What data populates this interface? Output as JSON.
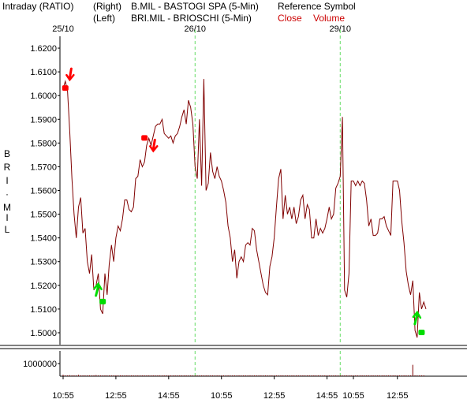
{
  "header": {
    "title": "Intraday (RATIO)",
    "right_tag": "(Right)",
    "left_tag": "(Left)",
    "symbol_right": "B.MIL - BASTOGI SPA  (5-Min)",
    "symbol_left": "BRI.MIL - BRIOSCHI  (5-Min)",
    "reference": "Reference Symbol",
    "close_label": "Close",
    "volume_label": "Volume"
  },
  "vertical_label": [
    "B",
    "R",
    "I",
    "·",
    "M",
    "I",
    "L"
  ],
  "colors": {
    "price_line": "#800000",
    "annotation_down": "#ff0000",
    "annotation_up": "#00dd00",
    "session_divider": "#66dd66",
    "legend_text": "#cc0000"
  },
  "chart_data": {
    "type": "line",
    "title": "",
    "xlabel": "",
    "ylabel": "BRI.MIL",
    "date_labels": [
      "25/10",
      "26/10",
      "29/10"
    ],
    "x_tick_labels": [
      "10:55",
      "12:55",
      "14:55",
      "10:55",
      "12:55",
      "14:55",
      "10:55",
      "12:55"
    ],
    "ylim": [
      1.495,
      1.625
    ],
    "y_ticks": [
      1.62,
      1.61,
      1.6,
      1.59,
      1.58,
      1.57,
      1.56,
      1.55,
      1.54,
      1.53,
      1.52,
      1.51,
      1.5
    ],
    "y_tick_labels": [
      "1.6200",
      "1.6100",
      "1.6000",
      "1.5900",
      "1.5800",
      "1.5700",
      "1.5600",
      "1.5500",
      "1.5400",
      "1.5300",
      "1.5200",
      "1.5100",
      "1.5000"
    ],
    "series": [
      {
        "values": [
          1.603,
          1.606,
          1.602,
          1.585,
          1.565,
          1.55,
          1.54,
          1.553,
          1.557,
          1.542,
          1.544,
          1.53,
          1.525,
          1.533,
          1.518,
          1.52,
          1.525,
          1.51,
          1.508,
          1.525,
          1.516,
          1.529,
          1.537,
          1.53,
          1.54,
          1.545,
          1.543,
          1.548,
          1.556,
          1.556,
          1.552,
          1.551,
          1.553,
          1.565,
          1.566,
          1.573,
          1.57,
          1.572,
          1.579,
          1.582,
          1.579,
          1.583,
          1.587,
          1.588,
          1.588,
          1.59,
          1.584,
          1.583,
          1.582,
          1.583,
          1.58,
          1.583,
          1.584,
          1.587,
          1.591,
          1.594,
          1.588,
          1.598,
          1.595,
          1.588,
          1.57,
          1.565,
          1.59,
          1.562,
          1.607,
          1.56,
          1.563,
          1.576,
          1.568,
          1.565,
          1.57,
          1.566,
          1.564,
          1.56,
          1.555,
          1.545,
          1.54,
          1.53,
          1.535,
          1.523,
          1.53,
          1.532,
          1.53,
          1.537,
          1.538,
          1.537,
          1.544,
          1.543,
          1.535,
          1.53,
          1.525,
          1.52,
          1.517,
          1.516,
          1.528,
          1.532,
          1.54,
          1.553,
          1.565,
          1.569,
          1.548,
          1.558,
          1.55,
          1.553,
          1.548,
          1.553,
          1.546,
          1.549,
          1.556,
          1.558,
          1.548,
          1.554,
          1.552,
          1.54,
          1.54,
          1.548,
          1.541,
          1.544,
          1.542,
          1.544,
          1.548,
          1.553,
          1.548,
          1.55,
          1.561,
          1.563,
          1.566,
          1.591,
          1.518,
          1.515,
          1.525,
          1.564,
          1.564,
          1.562,
          1.564,
          1.562,
          1.564,
          1.563,
          1.556,
          1.545,
          1.548,
          1.541,
          1.541,
          1.542,
          1.548,
          1.548,
          1.549,
          1.545,
          1.543,
          1.541,
          1.564,
          1.564,
          1.564,
          1.56,
          1.547,
          1.538,
          1.526,
          1.52,
          1.516,
          1.522,
          1.501,
          1.498,
          1.517,
          1.51,
          1.513,
          1.51
        ]
      }
    ],
    "volume": {
      "axis_label": "1000000",
      "max": 1000000,
      "values": [
        110000,
        60000,
        30000,
        80000,
        40000,
        20000,
        10000,
        100000,
        30000,
        20000,
        10000,
        50000,
        20000,
        60000,
        10000,
        90000,
        40000,
        20000,
        30000,
        10000,
        20000,
        10000,
        30000,
        10000,
        20000,
        30000,
        10000,
        40000,
        20000,
        10000,
        10000,
        30000,
        20000,
        10000,
        40000,
        20000,
        10000,
        10000,
        30000,
        20000,
        10000,
        20000,
        10000,
        30000,
        40000,
        20000,
        60000,
        70000,
        20000,
        10000,
        10000,
        30000,
        10000,
        20000,
        40000,
        10000,
        20000,
        10000,
        30000,
        20000,
        10000,
        20000,
        10000,
        40000,
        30000,
        20000,
        10000,
        50000,
        20000,
        10000,
        40000,
        10000,
        20000,
        10000,
        30000,
        20000,
        10000,
        20000,
        10000,
        20000,
        30000,
        10000,
        20000,
        10000,
        40000,
        20000,
        10000,
        30000,
        20000,
        10000,
        10000,
        20000,
        30000,
        10000,
        20000,
        10000,
        10000,
        20000,
        10000,
        30000,
        20000,
        10000,
        20000,
        10000,
        40000,
        20000,
        10000,
        30000,
        10000,
        20000,
        10000,
        20000,
        30000,
        10000,
        10000,
        20000,
        10000,
        30000,
        10000,
        20000,
        10000,
        20000,
        10000,
        20000,
        30000,
        20000,
        40000,
        10000,
        30000,
        20000,
        10000,
        20000,
        10000,
        20000,
        10000,
        30000,
        20000,
        10000,
        20000,
        10000,
        20000,
        30000,
        10000,
        20000,
        10000,
        20000,
        10000,
        20000,
        10000,
        20000,
        30000,
        10000,
        20000,
        10000,
        10000,
        20000,
        10000,
        30000,
        10000,
        900000,
        40000,
        20000,
        10000,
        20000,
        10000
      ]
    },
    "arrows_down": [
      {
        "index": 3,
        "value": 1.608
      },
      {
        "index": 41,
        "value": 1.578
      }
    ],
    "arrows_up": [
      {
        "index": 16,
        "value": 1.519
      },
      {
        "index": 161,
        "value": 1.507
      }
    ],
    "markers": [
      {
        "index": 1,
        "value": 1.603,
        "color": "down"
      },
      {
        "index": 37,
        "value": 1.582,
        "color": "down"
      },
      {
        "index": 18,
        "value": 1.513,
        "color": "up"
      },
      {
        "index": 163,
        "value": 1.5,
        "color": "up"
      }
    ]
  }
}
